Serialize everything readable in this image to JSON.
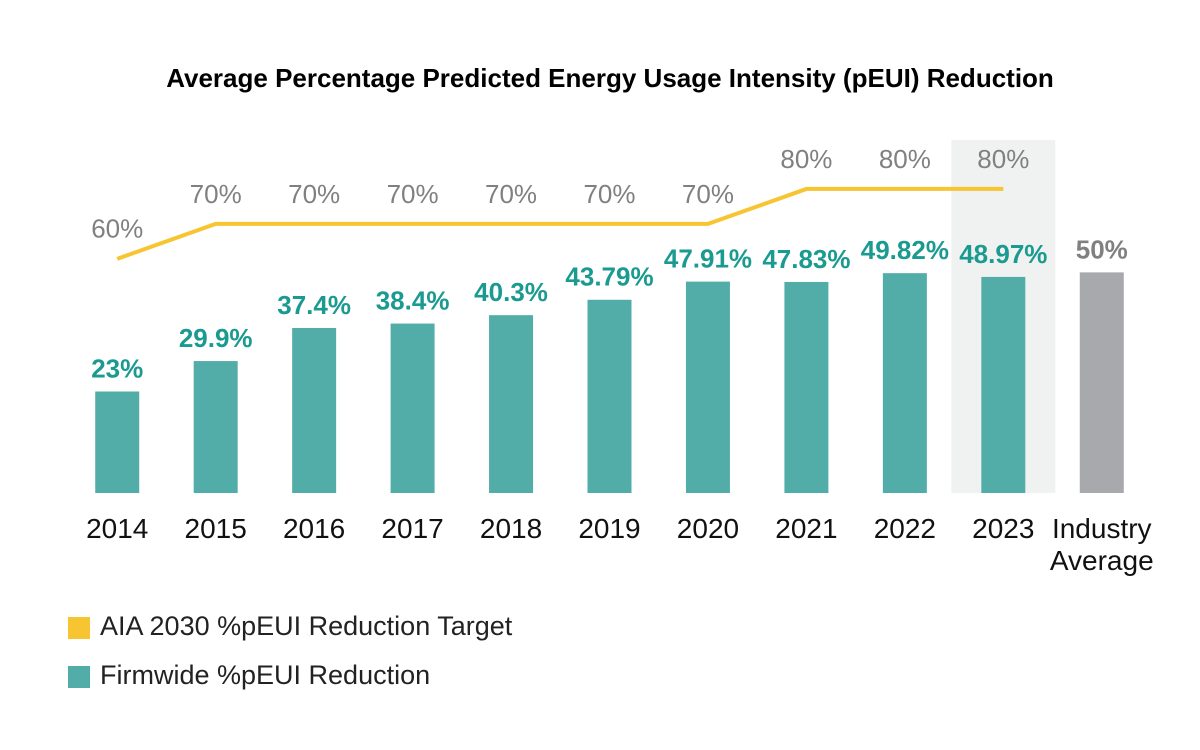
{
  "chart_data": {
    "type": "bar",
    "title": "Average Percentage Predicted Energy Usage Intensity (pEUI) Reduction",
    "categories": [
      "2014",
      "2015",
      "2016",
      "2017",
      "2018",
      "2019",
      "2020",
      "2021",
      "2022",
      "2023",
      "Industry Average"
    ],
    "highlight_category": "2023",
    "ylim": [
      0,
      80
    ],
    "y2lim": [
      -7,
      94
    ],
    "series": [
      {
        "name": "AIA 2030 %pEUI Reduction Target",
        "type": "line",
        "axis": "y2",
        "color": "#f7c531",
        "label_color": "#808080",
        "values": [
          60,
          70,
          70,
          70,
          70,
          70,
          70,
          80,
          80,
          80,
          null
        ],
        "value_labels": [
          "60%",
          "70%",
          "70%",
          "70%",
          "70%",
          "70%",
          "70%",
          "80%",
          "80%",
          "80%",
          null
        ]
      },
      {
        "name": "Firmwide %pEUI Reduction",
        "type": "bar",
        "color": "#52ada8",
        "colors": [
          "#52ada8",
          "#52ada8",
          "#52ada8",
          "#52ada8",
          "#52ada8",
          "#52ada8",
          "#52ada8",
          "#52ada8",
          "#52ada8",
          "#52ada8",
          "#a7a9ac"
        ],
        "value_label_colors": [
          "#1a9a90",
          "#1a9a90",
          "#1a9a90",
          "#1a9a90",
          "#1a9a90",
          "#1a9a90",
          "#1a9a90",
          "#1a9a90",
          "#1a9a90",
          "#1a9a90",
          "#808080"
        ],
        "values": [
          23,
          29.9,
          37.4,
          38.4,
          40.3,
          43.79,
          47.91,
          47.83,
          49.82,
          48.97,
          50
        ],
        "value_labels": [
          "23%",
          "29.9%",
          "37.4%",
          "38.4%",
          "40.3%",
          "43.79%",
          "47.91%",
          "47.83%",
          "49.82%",
          "48.97%",
          "50%"
        ]
      }
    ]
  }
}
